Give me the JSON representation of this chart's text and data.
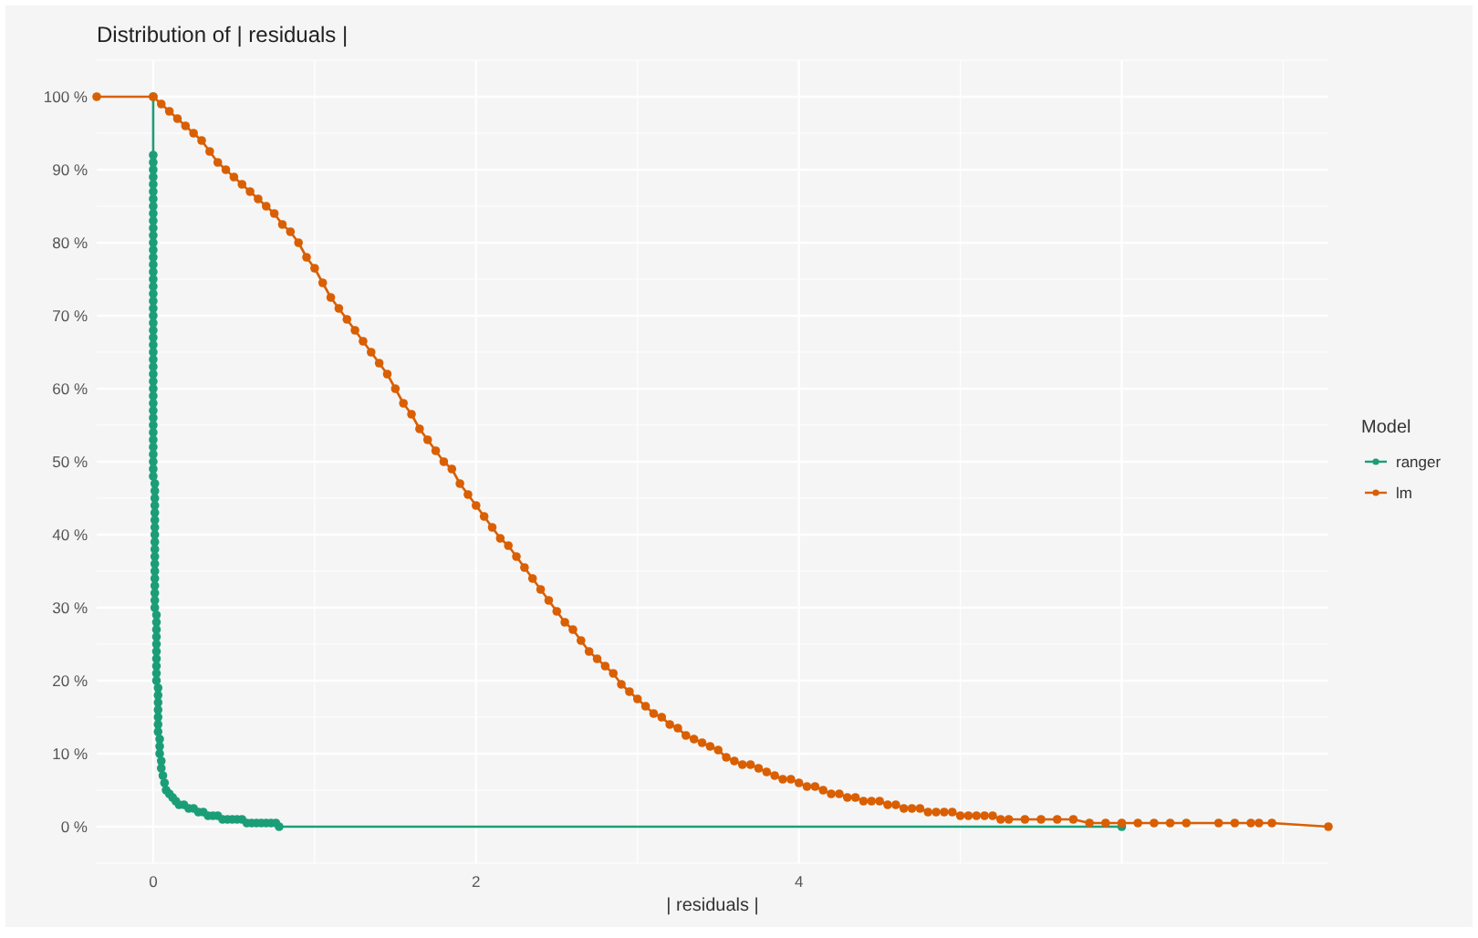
{
  "chart_data": {
    "type": "line",
    "title": "Distribution of | residuals |",
    "xlabel": "| residuals |",
    "legend_title": "Model",
    "xlim": [
      -0.35,
      7.28
    ],
    "xticks": [
      0,
      2,
      4,
      {
        "value": 6,
        "label": null
      }
    ],
    "ylim": [
      -5,
      105
    ],
    "yticks": [
      {
        "value": 0,
        "label": "0 %"
      },
      {
        "value": 10,
        "label": "10 %"
      },
      {
        "value": 20,
        "label": "20 %"
      },
      {
        "value": 30,
        "label": "30 %"
      },
      {
        "value": 40,
        "label": "40 %"
      },
      {
        "value": 50,
        "label": "50 %"
      },
      {
        "value": 60,
        "label": "60 %"
      },
      {
        "value": 70,
        "label": "70 %"
      },
      {
        "value": 80,
        "label": "80 %"
      },
      {
        "value": 90,
        "label": "90 %"
      },
      {
        "value": 100,
        "label": "100 %"
      }
    ],
    "grid": true,
    "legend": "right",
    "marker": "circle",
    "series": [
      {
        "name": "ranger",
        "color": "#1b9e77",
        "x": [
          0,
          0,
          0,
          0,
          0,
          0,
          0,
          0,
          0,
          0,
          0,
          0,
          0,
          0,
          0,
          0,
          0,
          0,
          0,
          0,
          0,
          0,
          0,
          0,
          0,
          0,
          0,
          0,
          0,
          0,
          0,
          0,
          0,
          0,
          0,
          0,
          0,
          0,
          0,
          0,
          0,
          0,
          0,
          0,
          0,
          0,
          0.01,
          0.01,
          0.01,
          0.01,
          0.01,
          0.01,
          0.01,
          0.01,
          0.01,
          0.01,
          0.01,
          0.01,
          0.01,
          0.01,
          0.01,
          0.01,
          0.01,
          0.01,
          0.02,
          0.02,
          0.02,
          0.02,
          0.02,
          0.02,
          0.02,
          0.02,
          0.02,
          0.02,
          0.03,
          0.03,
          0.03,
          0.03,
          0.03,
          0.03,
          0.03,
          0.04,
          0.04,
          0.04,
          0.05,
          0.05,
          0.06,
          0.07,
          0.08,
          0.1,
          0.12,
          0.14,
          0.16,
          0.19,
          0.22,
          0.25,
          0.28,
          0.31,
          0.34,
          0.37,
          0.4,
          0.43,
          0.46,
          0.49,
          0.52,
          0.55,
          0.58,
          0.61,
          0.64,
          0.67,
          0.7,
          0.73,
          0.76,
          0.78,
          6
        ],
        "values": [
          100,
          92,
          91,
          90,
          89,
          88,
          87,
          86,
          85,
          84,
          83,
          82,
          81,
          80,
          79,
          78,
          77,
          76,
          75,
          74,
          73,
          72,
          71,
          70,
          69,
          68,
          67,
          66,
          65,
          64,
          63,
          62,
          61,
          60,
          59,
          58,
          57,
          56,
          55,
          54,
          53,
          52,
          51,
          50,
          49,
          48,
          47,
          46,
          45,
          44,
          43,
          42,
          41,
          40,
          39,
          38,
          37,
          36,
          35,
          34,
          33,
          32,
          31,
          30,
          29,
          28,
          27,
          26,
          25,
          24,
          23,
          22,
          21,
          20,
          19,
          18,
          17,
          16,
          15,
          14,
          13,
          12,
          11,
          10,
          9,
          8,
          7,
          6,
          5,
          4.5,
          4,
          3.5,
          3,
          3,
          2.5,
          2.5,
          2,
          2,
          1.5,
          1.5,
          1.5,
          1,
          1,
          1,
          1,
          1,
          0.5,
          0.5,
          0.5,
          0.5,
          0.5,
          0.5,
          0.5,
          0,
          0
        ]
      },
      {
        "name": "lm",
        "color": "#d95f02",
        "x": [
          -0.35,
          0,
          0.05,
          0.1,
          0.15,
          0.2,
          0.25,
          0.3,
          0.35,
          0.4,
          0.45,
          0.5,
          0.55,
          0.6,
          0.65,
          0.7,
          0.75,
          0.8,
          0.85,
          0.9,
          0.95,
          1,
          1.05,
          1.1,
          1.15,
          1.2,
          1.25,
          1.3,
          1.35,
          1.4,
          1.45,
          1.5,
          1.55,
          1.6,
          1.65,
          1.7,
          1.75,
          1.8,
          1.85,
          1.9,
          1.95,
          2,
          2.05,
          2.1,
          2.15,
          2.2,
          2.25,
          2.3,
          2.35,
          2.4,
          2.45,
          2.5,
          2.55,
          2.6,
          2.65,
          2.7,
          2.75,
          2.8,
          2.85,
          2.9,
          2.95,
          3,
          3.05,
          3.1,
          3.15,
          3.2,
          3.25,
          3.3,
          3.35,
          3.4,
          3.45,
          3.5,
          3.55,
          3.6,
          3.65,
          3.7,
          3.75,
          3.8,
          3.85,
          3.9,
          3.95,
          4,
          4.05,
          4.1,
          4.15,
          4.2,
          4.25,
          4.3,
          4.35,
          4.4,
          4.45,
          4.5,
          4.55,
          4.6,
          4.65,
          4.7,
          4.75,
          4.8,
          4.85,
          4.9,
          4.95,
          5,
          5.05,
          5.1,
          5.15,
          5.2,
          5.25,
          5.3,
          5.4,
          5.5,
          5.6,
          5.7,
          5.8,
          5.9,
          6,
          6.1,
          6.2,
          6.3,
          6.4,
          6.6,
          6.7,
          6.8,
          6.85,
          6.93,
          7.28
        ],
        "values": [
          100,
          100,
          99,
          98,
          97,
          96,
          95,
          94,
          92.5,
          91,
          90,
          89,
          88,
          87,
          86,
          85,
          84,
          82.5,
          81.5,
          80,
          78,
          76.5,
          74.5,
          72.5,
          71,
          69.5,
          68,
          66.5,
          65,
          63.5,
          62,
          60,
          58,
          56.5,
          54.5,
          53,
          51.5,
          50,
          49,
          47,
          45.5,
          44,
          42.5,
          41,
          39.5,
          38.5,
          37,
          35.5,
          34,
          32.5,
          31,
          29.5,
          28,
          27,
          25.5,
          24,
          23,
          22,
          21,
          19.5,
          18.5,
          17.5,
          16.5,
          15.5,
          15,
          14,
          13.5,
          12.5,
          12,
          11.5,
          11,
          10.5,
          9.5,
          9,
          8.5,
          8.5,
          8,
          7.5,
          7,
          6.5,
          6.5,
          6,
          5.5,
          5.5,
          5,
          4.5,
          4.5,
          4,
          4,
          3.5,
          3.5,
          3.5,
          3,
          3,
          2.5,
          2.5,
          2.5,
          2,
          2,
          2,
          2,
          1.5,
          1.5,
          1.5,
          1.5,
          1.5,
          1,
          1,
          1,
          1,
          1,
          1,
          0.5,
          0.5,
          0.5,
          0.5,
          0.5,
          0.5,
          0.5,
          0.5,
          0.5,
          0.5,
          0.5,
          0.5,
          0
        ]
      }
    ]
  }
}
